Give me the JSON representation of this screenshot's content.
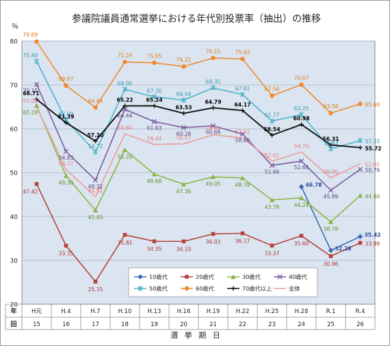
{
  "chart_data": {
    "type": "line",
    "title": "参議院議員通常選挙における年代別投票率（抽出）の推移",
    "ylabel": "％",
    "xlabel": "選 挙 期 日",
    "row_label_year": "年",
    "row_label_round": "回",
    "ylim": [
      20,
      80
    ],
    "yticks": [
      20,
      30,
      40,
      50,
      60,
      70,
      80
    ],
    "grid": true,
    "legend_position": "bottom-inside",
    "categories": [
      "H元",
      "H.4",
      "H.7",
      "H.10",
      "H.13",
      "H.16",
      "H.19",
      "H.22",
      "H.25",
      "H.28",
      "R.1",
      "R.4"
    ],
    "rounds": [
      "15",
      "16",
      "17",
      "18",
      "19",
      "20",
      "21",
      "22",
      "23",
      "24",
      "25",
      "26"
    ],
    "series": [
      {
        "name": "10歳代",
        "color": "#3d6bb3",
        "marker": "diamond",
        "values": [
          null,
          null,
          null,
          null,
          null,
          null,
          null,
          null,
          null,
          46.78,
          32.28,
          35.42
        ],
        "labels": [
          null,
          null,
          null,
          null,
          null,
          null,
          null,
          null,
          null,
          "46.78",
          "32.28",
          "35.42"
        ],
        "label_color": "#2a4f9a"
      },
      {
        "name": "20歳代",
        "color": "#b5443f",
        "marker": "square",
        "values": [
          47.42,
          33.35,
          25.15,
          35.81,
          34.35,
          34.33,
          36.03,
          36.17,
          33.37,
          35.6,
          30.96,
          33.99
        ],
        "labels": [
          "47.42",
          "33.35",
          "25.15",
          "35.81",
          "34.35",
          "34.33",
          "36.03",
          "36.17",
          "33.37",
          "35.60",
          "30.96",
          "33.99"
        ],
        "label_color": "#a8332e"
      },
      {
        "name": "30歳代",
        "color": "#8db443",
        "marker": "triangle",
        "values": [
          65.29,
          49.3,
          41.43,
          55.2,
          49.68,
          47.36,
          49.05,
          48.79,
          43.78,
          44.24,
          38.78,
          44.8
        ],
        "labels": [
          "65.29",
          "49.30",
          "41.43",
          "55.20",
          "49.68",
          "47.36",
          "49.05",
          "48.79",
          "43.78",
          "44.24",
          "38.78",
          "44.80"
        ],
        "label_color": "#5f8f22"
      },
      {
        "name": "40歳代",
        "color": "#7a5b9e",
        "marker": "x",
        "values": [
          70.15,
          54.83,
          48.32,
          64.44,
          61.63,
          60.28,
          60.68,
          58.8,
          51.66,
          52.64,
          45.99,
          50.76
        ],
        "labels": [
          "70.15",
          "54.83",
          "48.32",
          "64.44",
          "61.63",
          "60.28",
          "60.68",
          "58.80",
          "51.66",
          "52.64",
          "45.99",
          "50.76"
        ],
        "label_color": "#5a3f80"
      },
      {
        "name": "50歳代",
        "color": "#4ab3c9",
        "marker": "star",
        "values": [
          75.4,
          62.0,
          54.72,
          69.0,
          67.3,
          66.54,
          69.35,
          67.81,
          61.77,
          63.25,
          55.43,
          57.33
        ],
        "labels": [
          "75.40",
          "62.00",
          "54.72",
          "69.00",
          "67.30",
          "66.54",
          "69.35",
          "67.81",
          "61.77",
          "63.25",
          "55.43",
          "57.33"
        ],
        "label_color": "#2e97ad"
      },
      {
        "name": "60歳代",
        "color": "#ef8a2c",
        "marker": "circle",
        "values": [
          79.89,
          69.87,
          64.86,
          75.24,
          75.05,
          74.21,
          76.15,
          75.93,
          67.56,
          70.07,
          63.58,
          65.69
        ],
        "labels": [
          "79.89",
          "69.87",
          "64.86",
          "75.24",
          "75.05",
          "74.21",
          "76.15",
          "75.93",
          "67.56",
          "70.07",
          "63.58",
          "65.69"
        ],
        "label_color": "#e07a14"
      },
      {
        "name": "70歳代以上",
        "color": "#111111",
        "marker": "plus",
        "values": [
          66.71,
          61.39,
          57.2,
          65.22,
          65.24,
          63.53,
          64.79,
          64.17,
          58.54,
          60.98,
          56.31,
          55.72
        ],
        "labels": [
          "66.71",
          "61.39",
          "57.20",
          "65.22",
          "65.24",
          "63.53",
          "64.79",
          "64.17",
          "58.54",
          "60.98",
          "56.31",
          "55.72"
        ],
        "label_color": "#000000"
      },
      {
        "name": "全体",
        "color": "#f09a98",
        "marker": "none",
        "values": [
          65.02,
          50.72,
          44.52,
          58.84,
          56.44,
          56.57,
          58.64,
          57.92,
          52.61,
          54.7,
          48.8,
          52.05
        ],
        "labels": [
          "65.02",
          "50.72",
          "44.52",
          "58.84",
          "56.44",
          "56.57",
          "58.64",
          "57.92",
          "52.61",
          "54.70",
          "48.80",
          "52.05"
        ],
        "label_color": "#e87e7b"
      }
    ]
  }
}
